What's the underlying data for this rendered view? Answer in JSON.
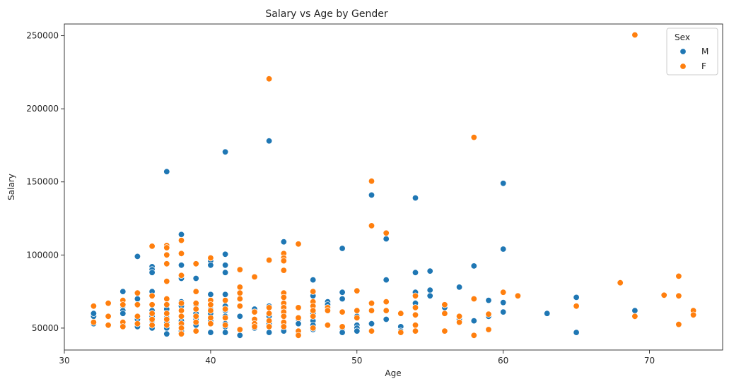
{
  "chart_data": {
    "type": "scatter",
    "title": "Salary vs Age by Gender",
    "xlabel": "Age",
    "ylabel": "Salary",
    "xlim": [
      30,
      75
    ],
    "ylim": [
      35000,
      258000
    ],
    "xticks": [
      30,
      40,
      50,
      60,
      70
    ],
    "yticks": [
      50000,
      100000,
      150000,
      200000,
      250000
    ],
    "grid": false,
    "legend": {
      "title": "Sex",
      "placement": "top-right"
    },
    "series": [
      {
        "name": "M",
        "color": "#1f77b4",
        "points": [
          [
            32,
            58000
          ],
          [
            32,
            60000
          ],
          [
            32,
            53000
          ],
          [
            33,
            52000
          ],
          [
            33,
            58000
          ],
          [
            34,
            75000
          ],
          [
            34,
            65000
          ],
          [
            34,
            62000
          ],
          [
            34,
            60000
          ],
          [
            34,
            52000
          ],
          [
            35,
            99000
          ],
          [
            35,
            70000
          ],
          [
            35,
            66000
          ],
          [
            35,
            56000
          ],
          [
            35,
            51000
          ],
          [
            36,
            92000
          ],
          [
            36,
            90000
          ],
          [
            36,
            88000
          ],
          [
            36,
            75000
          ],
          [
            36,
            66000
          ],
          [
            36,
            62000
          ],
          [
            36,
            58000
          ],
          [
            36,
            55000
          ],
          [
            36,
            52000
          ],
          [
            36,
            50000
          ],
          [
            37,
            157000
          ],
          [
            37,
            63000
          ],
          [
            37,
            60000
          ],
          [
            37,
            57000
          ],
          [
            37,
            54000
          ],
          [
            37,
            50000
          ],
          [
            37,
            46000
          ],
          [
            38,
            114000
          ],
          [
            38,
            93000
          ],
          [
            38,
            84000
          ],
          [
            38,
            68000
          ],
          [
            38,
            65000
          ],
          [
            38,
            58000
          ],
          [
            38,
            55000
          ],
          [
            38,
            52000
          ],
          [
            38,
            48000
          ],
          [
            38,
            46000
          ],
          [
            39,
            84000
          ],
          [
            39,
            66000
          ],
          [
            39,
            60000
          ],
          [
            39,
            56000
          ],
          [
            39,
            52000
          ],
          [
            40,
            96000
          ],
          [
            40,
            93000
          ],
          [
            40,
            73000
          ],
          [
            40,
            66000
          ],
          [
            40,
            63000
          ],
          [
            40,
            60000
          ],
          [
            40,
            55000
          ],
          [
            40,
            47000
          ],
          [
            41,
            170500
          ],
          [
            41,
            100500
          ],
          [
            41,
            93000
          ],
          [
            41,
            88000
          ],
          [
            41,
            73000
          ],
          [
            41,
            65000
          ],
          [
            41,
            62000
          ],
          [
            41,
            58000
          ],
          [
            41,
            53000
          ],
          [
            41,
            51000
          ],
          [
            41,
            47000
          ],
          [
            42,
            65000
          ],
          [
            42,
            58000
          ],
          [
            42,
            49000
          ],
          [
            42,
            45000
          ],
          [
            43,
            85000
          ],
          [
            43,
            63000
          ],
          [
            43,
            56000
          ],
          [
            43,
            52000
          ],
          [
            43,
            50000
          ],
          [
            44,
            178000
          ],
          [
            44,
            65000
          ],
          [
            44,
            58000
          ],
          [
            44,
            53000
          ],
          [
            44,
            47000
          ],
          [
            45,
            109000
          ],
          [
            45,
            66000
          ],
          [
            45,
            63000
          ],
          [
            45,
            58000
          ],
          [
            45,
            53000
          ],
          [
            45,
            48000
          ],
          [
            46,
            56000
          ],
          [
            46,
            53000
          ],
          [
            46,
            47000
          ],
          [
            46,
            46000
          ],
          [
            47,
            83000
          ],
          [
            47,
            72000
          ],
          [
            47,
            60000
          ],
          [
            47,
            55000
          ],
          [
            47,
            52000
          ],
          [
            47,
            49000
          ],
          [
            48,
            68000
          ],
          [
            48,
            66000
          ],
          [
            48,
            52000
          ],
          [
            49,
            104500
          ],
          [
            49,
            74500
          ],
          [
            49,
            70000
          ],
          [
            49,
            50000
          ],
          [
            49,
            47000
          ],
          [
            50,
            58000
          ],
          [
            50,
            52000
          ],
          [
            50,
            50000
          ],
          [
            50,
            48000
          ],
          [
            51,
            141000
          ],
          [
            51,
            53000
          ],
          [
            52,
            111000
          ],
          [
            52,
            83000
          ],
          [
            52,
            56000
          ],
          [
            53,
            51000
          ],
          [
            53,
            48000
          ],
          [
            54,
            139000
          ],
          [
            54,
            88000
          ],
          [
            54,
            74500
          ],
          [
            54,
            67000
          ],
          [
            55,
            89000
          ],
          [
            55,
            76000
          ],
          [
            55,
            72000
          ],
          [
            56,
            64000
          ],
          [
            57,
            78000
          ],
          [
            57,
            56000
          ],
          [
            58,
            92500
          ],
          [
            58,
            55000
          ],
          [
            59,
            69000
          ],
          [
            59,
            58000
          ],
          [
            60,
            149000
          ],
          [
            60,
            104000
          ],
          [
            60,
            67500
          ],
          [
            60,
            61000
          ],
          [
            63,
            60000
          ],
          [
            65,
            71000
          ],
          [
            65,
            47000
          ],
          [
            69,
            62000
          ]
        ]
      },
      {
        "name": "F",
        "color": "#ff7f0e",
        "points": [
          [
            32,
            65000
          ],
          [
            32,
            54000
          ],
          [
            33,
            67000
          ],
          [
            33,
            58000
          ],
          [
            33,
            52000
          ],
          [
            34,
            69000
          ],
          [
            34,
            66000
          ],
          [
            34,
            54000
          ],
          [
            34,
            51000
          ],
          [
            35,
            74000
          ],
          [
            35,
            66000
          ],
          [
            35,
            58000
          ],
          [
            35,
            53000
          ],
          [
            36,
            106000
          ],
          [
            36,
            72000
          ],
          [
            36,
            66000
          ],
          [
            36,
            60000
          ],
          [
            36,
            56000
          ],
          [
            36,
            52000
          ],
          [
            37,
            106500
          ],
          [
            37,
            105000
          ],
          [
            37,
            100000
          ],
          [
            37,
            94000
          ],
          [
            37,
            82000
          ],
          [
            37,
            70000
          ],
          [
            37,
            66000
          ],
          [
            37,
            60000
          ],
          [
            37,
            56000
          ],
          [
            37,
            52000
          ],
          [
            38,
            110000
          ],
          [
            38,
            101000
          ],
          [
            38,
            86000
          ],
          [
            38,
            67000
          ],
          [
            38,
            62000
          ],
          [
            38,
            58000
          ],
          [
            38,
            53000
          ],
          [
            38,
            50000
          ],
          [
            38,
            46000
          ],
          [
            39,
            94000
          ],
          [
            39,
            75000
          ],
          [
            39,
            67000
          ],
          [
            39,
            63000
          ],
          [
            39,
            58000
          ],
          [
            39,
            54000
          ],
          [
            39,
            48000
          ],
          [
            40,
            98000
          ],
          [
            40,
            69000
          ],
          [
            40,
            66000
          ],
          [
            40,
            62000
          ],
          [
            40,
            57000
          ],
          [
            40,
            53000
          ],
          [
            41,
            69000
          ],
          [
            41,
            63000
          ],
          [
            41,
            57000
          ],
          [
            41,
            52000
          ],
          [
            42,
            90000
          ],
          [
            42,
            78000
          ],
          [
            42,
            74000
          ],
          [
            42,
            70000
          ],
          [
            42,
            65000
          ],
          [
            42,
            49000
          ],
          [
            43,
            85000
          ],
          [
            43,
            61000
          ],
          [
            43,
            56000
          ],
          [
            43,
            53000
          ],
          [
            43,
            51000
          ],
          [
            44,
            220500
          ],
          [
            44,
            96500
          ],
          [
            44,
            64000
          ],
          [
            44,
            60000
          ],
          [
            44,
            55000
          ],
          [
            44,
            51000
          ],
          [
            45,
            101000
          ],
          [
            45,
            98000
          ],
          [
            45,
            96000
          ],
          [
            45,
            89500
          ],
          [
            45,
            74000
          ],
          [
            45,
            71000
          ],
          [
            45,
            67000
          ],
          [
            45,
            64000
          ],
          [
            45,
            61000
          ],
          [
            45,
            58000
          ],
          [
            45,
            54000
          ],
          [
            45,
            51000
          ],
          [
            46,
            107500
          ],
          [
            46,
            64000
          ],
          [
            46,
            57000
          ],
          [
            46,
            48000
          ],
          [
            46,
            45000
          ],
          [
            47,
            75000
          ],
          [
            47,
            68000
          ],
          [
            47,
            65000
          ],
          [
            47,
            62000
          ],
          [
            47,
            58000
          ],
          [
            47,
            50000
          ],
          [
            48,
            64000
          ],
          [
            48,
            62000
          ],
          [
            48,
            52000
          ],
          [
            49,
            61000
          ],
          [
            49,
            51000
          ],
          [
            50,
            75500
          ],
          [
            50,
            62000
          ],
          [
            50,
            57000
          ],
          [
            51,
            150500
          ],
          [
            51,
            120000
          ],
          [
            51,
            67000
          ],
          [
            51,
            62000
          ],
          [
            51,
            48000
          ],
          [
            52,
            115000
          ],
          [
            52,
            68000
          ],
          [
            52,
            62000
          ],
          [
            53,
            60000
          ],
          [
            53,
            47000
          ],
          [
            54,
            72000
          ],
          [
            54,
            64000
          ],
          [
            54,
            59000
          ],
          [
            54,
            52000
          ],
          [
            54,
            48000
          ],
          [
            56,
            66000
          ],
          [
            56,
            60000
          ],
          [
            56,
            48000
          ],
          [
            57,
            58000
          ],
          [
            57,
            54000
          ],
          [
            58,
            180500
          ],
          [
            58,
            70000
          ],
          [
            58,
            45000
          ],
          [
            59,
            59500
          ],
          [
            59,
            49000
          ],
          [
            60,
            74500
          ],
          [
            61,
            72000
          ],
          [
            65,
            65000
          ],
          [
            68,
            81000
          ],
          [
            69,
            250500
          ],
          [
            69,
            58000
          ],
          [
            71,
            72500
          ],
          [
            72,
            85500
          ],
          [
            72,
            72000
          ],
          [
            72,
            52500
          ],
          [
            73,
            62000
          ],
          [
            73,
            59000
          ]
        ]
      }
    ]
  }
}
